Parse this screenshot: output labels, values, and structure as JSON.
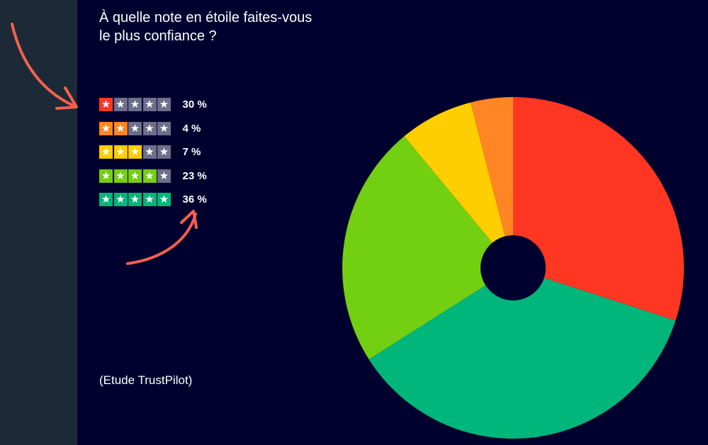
{
  "chart_data": {
    "type": "pie",
    "title": "À quelle note en étoile faites-vous le plus confiance ?",
    "title_lines": [
      "À quelle note en étoile faites-vous",
      "le plus confiance ?"
    ],
    "categories": [
      "1 étoile",
      "2 étoiles",
      "3 étoiles",
      "4 étoiles",
      "5 étoiles"
    ],
    "values": [
      30,
      4,
      7,
      23,
      36
    ],
    "value_labels": [
      "30 %",
      "4 %",
      "7 %",
      "23 %",
      "36 %"
    ],
    "colors": [
      "#ff3722",
      "#ff8622",
      "#ffce00",
      "#73cf11",
      "#00b67a"
    ],
    "empty_star_color": "#6e6e8a",
    "slice_order": [
      0,
      4,
      3,
      2,
      1
    ],
    "legend_position": "left",
    "donut_hole": true,
    "source": "(Etude TrustPilot)"
  },
  "colors": {
    "background": "#00002e",
    "side_panel": "#1b2a36",
    "arrow": "#f4604f"
  },
  "icons": {
    "star": "star-icon",
    "arrow": "curved-arrow-icon"
  }
}
